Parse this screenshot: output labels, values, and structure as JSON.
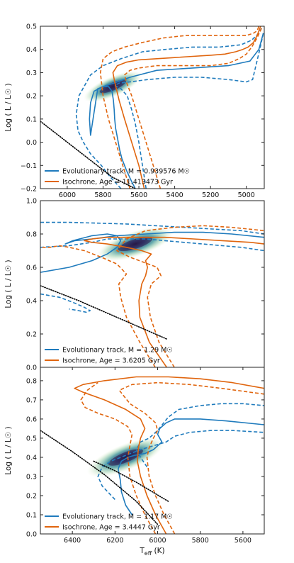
{
  "colors": {
    "track": "#1f7bbd",
    "isochrone": "#e0650e",
    "cloud_dark": "#2b1f4f",
    "cloud_mid": "#2e8a8f",
    "cloud_light": "#d5e8b3",
    "ms_line": "#000000"
  },
  "shared_xlabel": "T$_{eff}$ (K)",
  "shared_xlabel_display": "Teff (K)",
  "chart_data": [
    {
      "type": "line",
      "ylabel": "Log ( L / L☉ )",
      "xlim": [
        6150,
        4900
      ],
      "ylim": [
        -0.2,
        0.5
      ],
      "x_ticks": [
        6000,
        5800,
        5600,
        5400,
        5200,
        5000
      ],
      "y_ticks": [
        -0.2,
        -0.1,
        0.0,
        0.1,
        0.2,
        0.3,
        0.4,
        0.5
      ],
      "x_tick_labels": [
        "6000",
        "5800",
        "5600",
        "5400",
        "5200",
        "5000"
      ],
      "y_tick_labels": [
        "−0.2",
        "−0.1",
        "0.0",
        "0.1",
        "0.2",
        "0.3",
        "0.4",
        "0.5"
      ],
      "legend_location": "lower-left",
      "legend": [
        {
          "label": "Evolutionary track, M = 0.939576 M☉",
          "style": "track"
        },
        {
          "label": "Isochrone, Age = 11.413473 Gyr",
          "style": "isochrone"
        }
      ],
      "cloud": {
        "center": [
          5745,
          0.24
        ],
        "direction": [
          180,
          -0.06
        ],
        "length": 0.9,
        "width": 0.018
      },
      "series": [
        {
          "role": "track",
          "dash": false,
          "x": [
            5620,
            5640,
            5670,
            5695,
            5708,
            5720,
            5730,
            5735,
            5738,
            5742,
            5750,
            5770,
            5800,
            5850,
            5870,
            5876,
            5870,
            5830,
            5780,
            5740,
            5650,
            5500,
            5300,
            5100,
            4980,
            4930,
            4905
          ],
          "y": [
            -0.2,
            -0.17,
            -0.12,
            -0.07,
            -0.03,
            0.02,
            0.06,
            0.1,
            0.14,
            0.18,
            0.22,
            0.24,
            0.24,
            0.22,
            0.17,
            0.1,
            0.03,
            0.23,
            0.245,
            0.255,
            0.28,
            0.31,
            0.32,
            0.33,
            0.35,
            0.4,
            0.47
          ]
        },
        {
          "role": "track",
          "dash": true,
          "x": [
            5700,
            5760,
            5810,
            5870,
            5910,
            5940,
            5950,
            5935,
            5870,
            5800,
            5700,
            5580,
            5450,
            5300,
            5150,
            5030,
            4970,
            4930,
            4910
          ],
          "y": [
            -0.2,
            -0.15,
            -0.1,
            -0.05,
            0.0,
            0.05,
            0.12,
            0.2,
            0.29,
            0.33,
            0.36,
            0.39,
            0.4,
            0.41,
            0.41,
            0.42,
            0.44,
            0.47,
            0.5
          ]
        },
        {
          "role": "track",
          "dash": true,
          "x": [
            5560,
            5580,
            5600,
            5620,
            5640,
            5665,
            5700,
            5735,
            5710,
            5650,
            5550,
            5400,
            5250,
            5100,
            5000,
            4965,
            4950,
            4925,
            4905
          ],
          "y": [
            -0.2,
            -0.1,
            0.0,
            0.08,
            0.14,
            0.2,
            0.23,
            0.245,
            0.255,
            0.26,
            0.27,
            0.28,
            0.28,
            0.27,
            0.26,
            0.27,
            0.32,
            0.4,
            0.47
          ]
        },
        {
          "role": "isochrone",
          "dash": false,
          "x": [
            5570,
            5600,
            5640,
            5680,
            5710,
            5735,
            5745,
            5720,
            5670,
            5600,
            5500,
            5400,
            5300,
            5200,
            5120,
            5060,
            5020,
            4990,
            4960,
            4940,
            4920
          ],
          "y": [
            -0.2,
            -0.1,
            0.0,
            0.1,
            0.18,
            0.26,
            0.3,
            0.33,
            0.345,
            0.355,
            0.36,
            0.365,
            0.37,
            0.375,
            0.38,
            0.39,
            0.4,
            0.41,
            0.43,
            0.46,
            0.5
          ]
        },
        {
          "role": "isochrone",
          "dash": true,
          "x": [
            5650,
            5690,
            5730,
            5770,
            5800,
            5815,
            5800,
            5750,
            5680,
            5580,
            5460,
            5340,
            5220,
            5120,
            5050,
            5000,
            4960,
            4940,
            4930
          ],
          "y": [
            -0.2,
            -0.1,
            0.0,
            0.1,
            0.2,
            0.3,
            0.36,
            0.39,
            0.41,
            0.43,
            0.45,
            0.46,
            0.46,
            0.46,
            0.46,
            0.46,
            0.47,
            0.48,
            0.5
          ]
        },
        {
          "role": "isochrone",
          "dash": true,
          "x": [
            5480,
            5520,
            5560,
            5600,
            5640,
            5670,
            5680,
            5650,
            5600,
            5500,
            5400,
            5300,
            5200,
            5100,
            5040,
            5000,
            4970,
            4940,
            4910
          ],
          "y": [
            -0.2,
            -0.1,
            0.0,
            0.1,
            0.2,
            0.26,
            0.29,
            0.31,
            0.32,
            0.33,
            0.33,
            0.33,
            0.33,
            0.34,
            0.36,
            0.38,
            0.41,
            0.45,
            0.5
          ]
        },
        {
          "role": "ms",
          "dash": "dotted",
          "x": [
            6150,
            5950,
            5750,
            5620
          ],
          "y": [
            0.09,
            -0.03,
            -0.15,
            -0.2
          ]
        }
      ]
    },
    {
      "type": "line",
      "ylabel": "Log ( L / L☉ )",
      "xlim": [
        6650,
        5480
      ],
      "ylim": [
        0.0,
        1.0
      ],
      "x_ticks": [],
      "y_ticks": [
        0.0,
        0.2,
        0.4,
        0.6,
        0.8,
        1.0
      ],
      "x_tick_labels": [],
      "y_tick_labels": [
        "0.0",
        "0.2",
        "0.4",
        "0.6",
        "0.8",
        "1.0"
      ],
      "legend_location": "lower-left",
      "legend": [
        {
          "label": "Evolutionary track, M = 1.29 M☉",
          "style": "track"
        },
        {
          "label": "Isochrone, Age = 3.6205 Gyr",
          "style": "isochrone"
        }
      ],
      "cloud": {
        "center": [
          6155,
          0.74
        ],
        "direction": [
          220,
          -0.08
        ],
        "length": 0.9,
        "width": 0.035
      },
      "series": [
        {
          "role": "track",
          "dash": false,
          "x": [
            6650,
            6500,
            6380,
            6300,
            6250,
            6230,
            6250,
            6300,
            6380,
            6480,
            6520,
            6470,
            6380,
            6250,
            6100,
            5950,
            5800,
            5650,
            5480
          ],
          "y": [
            0.57,
            0.6,
            0.64,
            0.68,
            0.72,
            0.76,
            0.79,
            0.8,
            0.79,
            0.76,
            0.74,
            0.76,
            0.77,
            0.79,
            0.8,
            0.81,
            0.81,
            0.8,
            0.78
          ]
        },
        {
          "role": "track",
          "dash": true,
          "x": [
            6650,
            6500,
            6350,
            6200,
            6050,
            5900,
            5750,
            5600,
            5480
          ],
          "y": [
            0.87,
            0.87,
            0.865,
            0.86,
            0.85,
            0.84,
            0.83,
            0.82,
            0.8
          ]
        },
        {
          "role": "track",
          "dash": true,
          "x": [
            6650,
            6500,
            6380,
            6300,
            6200,
            6100,
            6000,
            5900,
            5800,
            5700,
            5600,
            5480
          ],
          "y": [
            0.72,
            0.73,
            0.75,
            0.77,
            0.77,
            0.77,
            0.76,
            0.75,
            0.74,
            0.73,
            0.72,
            0.7
          ]
        },
        {
          "role": "track",
          "dash": true,
          "x": [
            6650,
            6550,
            6480,
            6420,
            6390,
            6410,
            6450,
            6500
          ],
          "y": [
            0.44,
            0.42,
            0.39,
            0.36,
            0.34,
            0.33,
            0.34,
            0.35
          ]
        },
        {
          "role": "isochrone",
          "dash": false,
          "x": [
            5990,
            6080,
            6130,
            6135,
            6120,
            6100,
            6090,
            6100,
            6070,
            6120,
            6200,
            6300,
            6380,
            6420,
            6380,
            6300,
            6150,
            6000,
            5850,
            5700,
            5550,
            5480
          ],
          "y": [
            0.0,
            0.15,
            0.3,
            0.4,
            0.5,
            0.55,
            0.6,
            0.64,
            0.68,
            0.7,
            0.72,
            0.74,
            0.75,
            0.76,
            0.77,
            0.78,
            0.78,
            0.78,
            0.77,
            0.76,
            0.75,
            0.74
          ]
        },
        {
          "role": "isochrone",
          "dash": true,
          "x": [
            5950,
            6030,
            6075,
            6090,
            6070,
            6020,
            6040,
            6110,
            6180,
            6250,
            6200,
            6100,
            5950,
            5800,
            5650,
            5480
          ],
          "y": [
            0.0,
            0.15,
            0.3,
            0.42,
            0.5,
            0.55,
            0.6,
            0.63,
            0.66,
            0.7,
            0.77,
            0.82,
            0.84,
            0.85,
            0.84,
            0.82
          ]
        },
        {
          "role": "isochrone",
          "dash": true,
          "x": [
            6050,
            6130,
            6200,
            6230,
            6240,
            6200,
            6250,
            6330,
            6420,
            6500,
            6550,
            6600,
            6650
          ],
          "y": [
            0.0,
            0.15,
            0.3,
            0.42,
            0.5,
            0.56,
            0.62,
            0.66,
            0.7,
            0.72,
            0.73,
            0.72,
            0.72
          ]
        },
        {
          "role": "ms",
          "dash": "dotted",
          "x": [
            6650,
            6450,
            6250,
            6050,
            5990
          ],
          "y": [
            0.49,
            0.4,
            0.3,
            0.2,
            0.17
          ]
        }
      ]
    },
    {
      "type": "line",
      "ylabel": "Log ( L / L☉ )",
      "xlim": [
        6550,
        5500
      ],
      "ylim": [
        0.0,
        0.87
      ],
      "x_ticks": [
        6400,
        6200,
        6000,
        5800,
        5600
      ],
      "y_ticks": [
        0.0,
        0.1,
        0.2,
        0.3,
        0.4,
        0.5,
        0.6,
        0.7,
        0.8
      ],
      "x_tick_labels": [
        "6400",
        "6200",
        "6000",
        "5800",
        "5600"
      ],
      "y_tick_labels": [
        "0.0",
        "0.1",
        "0.2",
        "0.3",
        "0.4",
        "0.5",
        "0.6",
        "0.7",
        "0.8"
      ],
      "xlabel": "T$_{eff}$ (K)",
      "legend_location": "lower-left",
      "legend": [
        {
          "label": "Evolutionary track, M = 1.17 M☉",
          "style": "track"
        },
        {
          "label": "Isochrone, Age = 3.4447 Gyr",
          "style": "isochrone"
        }
      ],
      "cloud": {
        "center": [
          6150,
          0.4
        ],
        "direction": [
          200,
          -0.09
        ],
        "length": 0.9,
        "width": 0.03
      },
      "series": [
        {
          "role": "track",
          "dash": false,
          "x": [
            6120,
            6150,
            6170,
            6175,
            6185,
            6170,
            6140,
            6110,
            6060,
            6020,
            5980,
            6000,
            5990,
            5960,
            5920,
            5800,
            5680,
            5500
          ],
          "y": [
            0.1,
            0.15,
            0.22,
            0.28,
            0.34,
            0.38,
            0.4,
            0.41,
            0.42,
            0.44,
            0.48,
            0.52,
            0.55,
            0.58,
            0.6,
            0.6,
            0.59,
            0.57
          ]
        },
        {
          "role": "track",
          "dash": true,
          "x": [
            6050,
            6080,
            6100,
            6080,
            6040,
            6000,
            5950,
            5900,
            5800,
            5700,
            5600,
            5500
          ],
          "y": [
            0.35,
            0.4,
            0.44,
            0.48,
            0.5,
            0.54,
            0.61,
            0.65,
            0.67,
            0.68,
            0.68,
            0.67
          ]
        },
        {
          "role": "track",
          "dash": true,
          "x": [
            6200,
            6260,
            6280,
            6260,
            6220,
            6150,
            6080,
            6020,
            5960,
            5920,
            5850,
            5750,
            5650,
            5500
          ],
          "y": [
            0.18,
            0.25,
            0.3,
            0.35,
            0.38,
            0.41,
            0.44,
            0.46,
            0.48,
            0.51,
            0.53,
            0.54,
            0.54,
            0.53
          ]
        },
        {
          "role": "isochrone",
          "dash": false,
          "x": [
            5960,
            6010,
            6050,
            6080,
            6095,
            6090,
            6080,
            6060,
            6080,
            6150,
            6250,
            6350,
            6390,
            6350,
            6250,
            6100,
            5950,
            5800,
            5650,
            5500
          ],
          "y": [
            0.0,
            0.1,
            0.2,
            0.3,
            0.38,
            0.45,
            0.5,
            0.55,
            0.6,
            0.65,
            0.7,
            0.74,
            0.76,
            0.78,
            0.8,
            0.82,
            0.82,
            0.81,
            0.79,
            0.76
          ]
        },
        {
          "role": "isochrone",
          "dash": true,
          "x": [
            5920,
            5970,
            6010,
            6040,
            6050,
            6040,
            6020,
            6000,
            6010,
            6060,
            6130,
            6180,
            6120,
            6000,
            5850,
            5700,
            5500
          ],
          "y": [
            0.0,
            0.1,
            0.2,
            0.3,
            0.4,
            0.45,
            0.5,
            0.54,
            0.58,
            0.63,
            0.68,
            0.75,
            0.78,
            0.79,
            0.78,
            0.76,
            0.73
          ]
        },
        {
          "role": "isochrone",
          "dash": true,
          "x": [
            6010,
            6060,
            6100,
            6130,
            6140,
            6130,
            6120,
            6140,
            6200,
            6280,
            6340,
            6360,
            6330,
            6280
          ],
          "y": [
            0.0,
            0.1,
            0.2,
            0.3,
            0.4,
            0.46,
            0.52,
            0.56,
            0.6,
            0.63,
            0.66,
            0.7,
            0.75,
            0.79
          ]
        },
        {
          "role": "ms",
          "dash": "dotted",
          "x": [
            6550,
            6400,
            6250,
            6100,
            6000
          ],
          "y": [
            0.54,
            0.43,
            0.31,
            0.17,
            0.05
          ]
        },
        {
          "role": "ms",
          "dash": "dotted",
          "x": [
            6300,
            6200,
            6100,
            5950
          ],
          "y": [
            0.38,
            0.33,
            0.27,
            0.17
          ]
        }
      ]
    }
  ]
}
